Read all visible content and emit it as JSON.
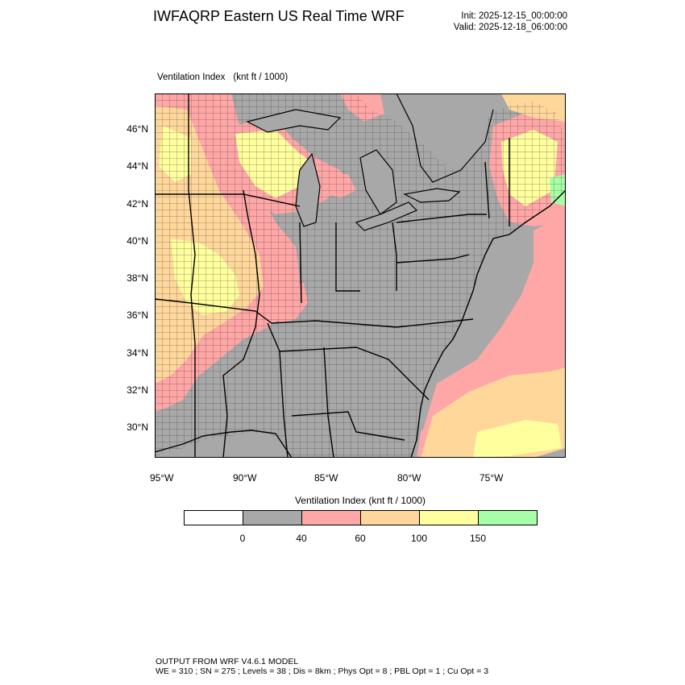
{
  "header": {
    "title": "IWFAQRP Eastern US Real Time WRF",
    "init": "Init: 2025-12-15_00:00:00",
    "valid": "Valid: 2025-12-18_06:00:00"
  },
  "map": {
    "field_name": "Ventilation Index",
    "field_units": "(knt ft / 1000)",
    "lat_labels": [
      "46°N",
      "44°N",
      "42°N",
      "40°N",
      "38°N",
      "36°N",
      "34°N",
      "32°N",
      "30°N"
    ],
    "lon_labels": [
      "95°W",
      "90°W",
      "85°W",
      "80°W",
      "75°W"
    ]
  },
  "legend": {
    "title": "Ventilation Index  (knt ft / 1000)",
    "colors": [
      "#ffffff",
      "#a8a8a8",
      "#ffa6a6",
      "#ffd79b",
      "#ffff9e",
      "#a6ffa6"
    ],
    "ticks": [
      "0",
      "40",
      "60",
      "100",
      "150"
    ]
  },
  "footer": {
    "line1": "OUTPUT FROM WRF V4.6.1 MODEL",
    "line2": "WE = 310 ; SN = 275 ; Levels = 38 ; Dis = 8km ; Phys Opt = 8 ; PBL Opt = 1 ; Cu Opt = 3"
  }
}
